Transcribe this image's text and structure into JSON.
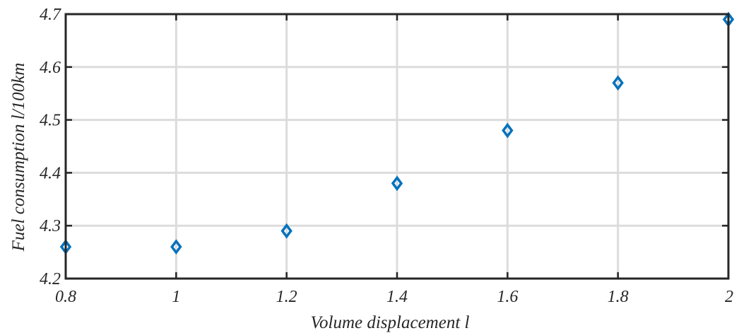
{
  "chart_data": {
    "type": "scatter",
    "xlabel": "Volume displacement l",
    "ylabel": "Fuel consumption l/100km",
    "xlim": [
      0.8,
      2.0
    ],
    "ylim": [
      4.2,
      4.7
    ],
    "x_ticks": [
      "0.8",
      "1",
      "1.2",
      "1.4",
      "1.6",
      "1.8",
      "2"
    ],
    "y_ticks": [
      "4.2",
      "4.3",
      "4.4",
      "4.5",
      "4.6",
      "4.7"
    ],
    "grid": true,
    "marker": "diamond",
    "marker_color": "#0072BD",
    "points": [
      {
        "x": 0.8,
        "y": 4.26
      },
      {
        "x": 1.0,
        "y": 4.26
      },
      {
        "x": 1.2,
        "y": 4.29
      },
      {
        "x": 1.4,
        "y": 4.38
      },
      {
        "x": 1.6,
        "y": 4.48
      },
      {
        "x": 1.8,
        "y": 4.57
      },
      {
        "x": 2.0,
        "y": 4.69
      }
    ]
  }
}
